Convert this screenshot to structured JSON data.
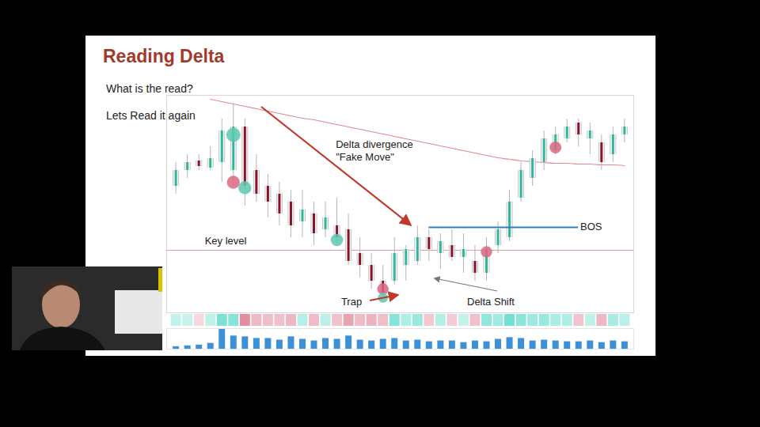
{
  "slide": {
    "title": "Reading Delta",
    "lines": [
      "What is the read?",
      "Lets Read it again"
    ]
  },
  "chart_data": [
    {
      "type": "candlestick",
      "x": [
        0,
        1,
        2,
        3,
        4,
        5,
        6,
        7,
        8,
        9,
        10,
        11,
        12,
        13,
        14,
        15,
        16,
        17,
        18,
        19,
        20,
        21,
        22,
        23,
        24,
        25,
        26,
        27,
        28,
        29,
        30,
        31,
        32,
        33,
        34,
        35,
        36,
        37,
        38,
        39
      ],
      "open": [
        4732,
        4736,
        4738.4,
        4736.6,
        4738,
        4736,
        4747,
        4736,
        4732,
        4730,
        4728,
        4723,
        4725,
        4721,
        4722,
        4721,
        4715,
        4712,
        4708,
        4708,
        4712,
        4713,
        4719,
        4715,
        4717,
        4714,
        4713,
        4710,
        4717,
        4719,
        4729,
        4734,
        4738,
        4741,
        4744,
        4748,
        4744,
        4743,
        4740,
        4745
      ],
      "high": [
        4738,
        4740,
        4740,
        4742,
        4749,
        4753,
        4749,
        4740,
        4735,
        4733,
        4731,
        4731,
        4728,
        4728,
        4729,
        4725,
        4719,
        4715,
        4712,
        4719,
        4717,
        4722,
        4721,
        4720,
        4721,
        4720,
        4717,
        4719,
        4723,
        4731,
        4738,
        4741,
        4746,
        4747,
        4749,
        4749,
        4748,
        4745,
        4747,
        4749
      ],
      "low": [
        4730,
        4734,
        4736,
        4736,
        4733,
        4732,
        4727,
        4728,
        4724,
        4722,
        4719,
        4719,
        4717,
        4719,
        4717,
        4712,
        4709,
        4706,
        4704,
        4707,
        4708,
        4712,
        4713,
        4711,
        4713,
        4710,
        4708,
        4708,
        4715,
        4718,
        4728,
        4732,
        4736,
        4740,
        4743,
        4742,
        4740,
        4736,
        4738,
        4743
      ],
      "close": [
        4736,
        4738,
        4737,
        4739,
        4746,
        4747,
        4732,
        4730,
        4728,
        4725,
        4722,
        4726,
        4720,
        4724,
        4719,
        4713,
        4712,
        4708,
        4705,
        4715,
        4716,
        4719,
        4716,
        4718,
        4714,
        4716,
        4710,
        4716,
        4721,
        4728,
        4736,
        4739,
        4744,
        4745,
        4747,
        4745,
        4746,
        4738,
        4745,
        4747
      ],
      "xlim": [
        -0.8,
        39.8
      ],
      "ylim": [
        4700,
        4755
      ],
      "tick_labels": false,
      "grid": false,
      "ma": {
        "color": "#e3898d",
        "values": [
          null,
          null,
          null,
          4754,
          4753.4,
          4752.8,
          4752.2,
          4751.6,
          4751,
          4750.4,
          4749.8,
          4749.2,
          4748.8,
          4748.2,
          4747.6,
          4747,
          4746.4,
          4745.8,
          4745.2,
          4744.6,
          4744,
          4743.4,
          4742.8,
          4742.2,
          4741.6,
          4741,
          4740.4,
          4739.8,
          4739.2,
          4738.8,
          4738.4,
          4738.2,
          4738,
          4737.8,
          4737.8,
          4737.6,
          4737.6,
          4737.4,
          4737.4,
          4737.2
        ]
      },
      "key_level": {
        "label": "Key level",
        "value": 4715.8,
        "color": "#cfa7a7"
      },
      "bos": {
        "label": "BOS",
        "value": 4721.6,
        "x": [
          22,
          35
        ],
        "color": "#2f7fc1"
      },
      "annotations": [
        "Delta divergence",
        "\"Fake Move\"",
        "Trap",
        "Delta Shift"
      ],
      "bubbles": {
        "x": [
          5,
          5,
          6,
          14,
          18,
          18,
          27,
          33
        ],
        "y": [
          4745,
          4733,
          4731.6,
          4718.4,
          4706,
          4703.8,
          4715.4,
          4741.8
        ],
        "size": [
          80,
          60,
          60,
          50,
          40,
          25,
          40,
          45
        ],
        "colors": [
          "#5cc8b2",
          "#dc6683",
          "#5cc8b2",
          "#5cc8b2",
          "#dc6683",
          "#5cc8b2",
          "#dc6683",
          "#dc6683"
        ]
      },
      "delta": [
        120,
        85,
        -40,
        150,
        620,
        540,
        -710,
        -320,
        -280,
        -260,
        -350,
        210,
        -300,
        180,
        -240,
        -520,
        -310,
        -380,
        -290,
        540,
        260,
        410,
        -180,
        230,
        -150,
        120,
        -260,
        480,
        350,
        690,
        520,
        380,
        430,
        290,
        260,
        -220,
        150,
        -330,
        310,
        180
      ]
    },
    {
      "type": "bar",
      "x": [
        0,
        1,
        2,
        3,
        4,
        5,
        6,
        7,
        8,
        9,
        10,
        11,
        12,
        13,
        14,
        15,
        16,
        17,
        18,
        19,
        20,
        21,
        22,
        23,
        24,
        25,
        26,
        27,
        28,
        29,
        30,
        31,
        32,
        33,
        34,
        35,
        36,
        37,
        38,
        39
      ],
      "values": [
        300,
        400,
        500,
        700,
        2400,
        1600,
        1500,
        1300,
        1300,
        1100,
        1500,
        1200,
        1000,
        1300,
        1200,
        1600,
        1100,
        1000,
        1200,
        1300,
        1000,
        1100,
        900,
        1000,
        1000,
        800,
        1000,
        900,
        1200,
        1400,
        1300,
        1000,
        1100,
        1000,
        900,
        900,
        1000,
        800,
        1000,
        900
      ],
      "color": "#3d8fd8",
      "xlim": [
        -0.8,
        39.8
      ],
      "ylim": [
        0,
        2500
      ],
      "tick_labels": false
    }
  ]
}
